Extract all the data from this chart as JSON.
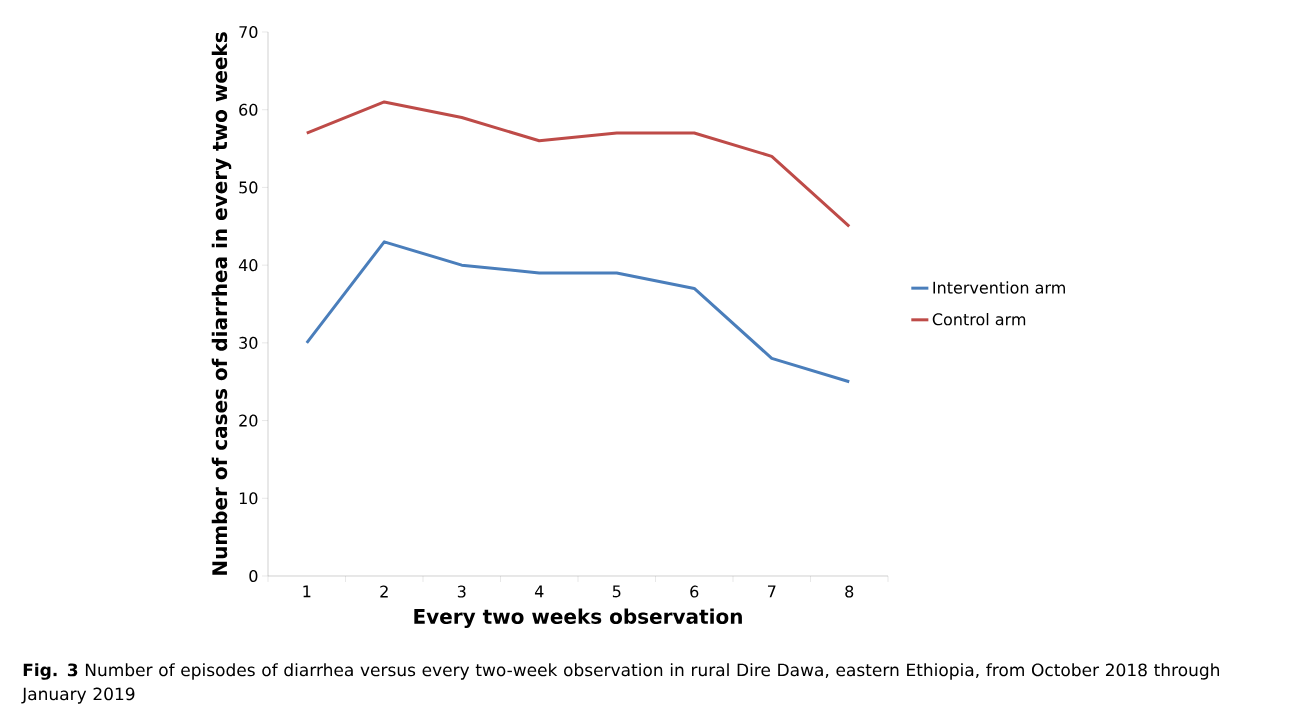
{
  "chart_data": {
    "type": "line",
    "xlabel": "Every two weeks observation",
    "ylabel": "Number of cases of diarrhea in every two weeks",
    "categories": [
      "1",
      "2",
      "3",
      "4",
      "5",
      "6",
      "7",
      "8"
    ],
    "series": [
      {
        "name": "Intervention arm",
        "color": "#4a7ebb",
        "values": [
          30,
          43,
          40,
          39,
          39,
          37,
          28,
          25
        ]
      },
      {
        "name": "Control arm",
        "color": "#be4b48",
        "values": [
          57,
          61,
          59,
          56,
          57,
          57,
          54,
          45
        ]
      }
    ],
    "ylim": [
      0,
      70
    ],
    "yticks": [
      0,
      10,
      20,
      30,
      40,
      50,
      60,
      70
    ],
    "grid": false,
    "legend": "right",
    "marker": "none",
    "line_style": "solid",
    "annotations": [
      "**Fig. 3** Number of episodes of diarrhea versus every two-week observation in rural Dire Dawa, eastern Ethiopia, from October 2018 through January 2019"
    ]
  }
}
